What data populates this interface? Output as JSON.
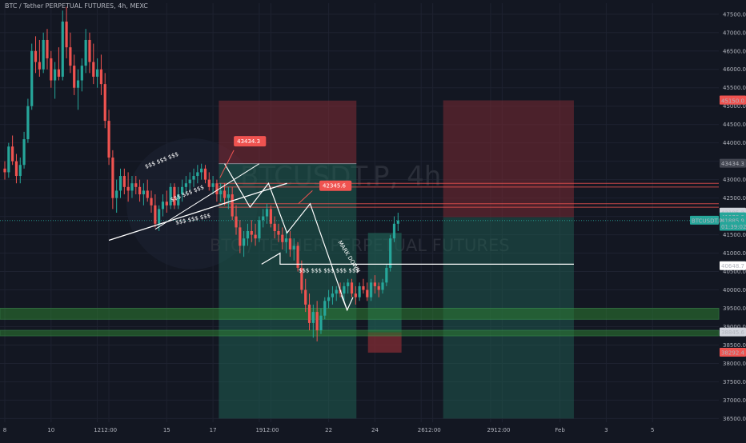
{
  "header": {
    "title": "BTC / Tether PERPETUAL FUTURES, 4h, MEXC"
  },
  "watermark": {
    "symbol": "BTCUSDT.P, 4h",
    "name": "BTC / TETHER PERPETUAL FUTURES"
  },
  "colors": {
    "bg": "#131722",
    "up": "#26a69a",
    "down": "#ef5350",
    "grid": "#1e2230",
    "zone_red": "#7a2a33",
    "zone_green": "#1f5e52",
    "band_green": "#2e7d32",
    "white": "#ffffff"
  },
  "chart_data": {
    "type": "candlestick",
    "title": "BTC / Tether PERPETUAL FUTURES, 4h, MEXC",
    "ylim": [
      36400,
      47800
    ],
    "y_ticks": [
      "47500.0",
      "47000.0",
      "46500.0",
      "46000.0",
      "45500.0",
      "45000.0",
      "44500.0",
      "44000.0",
      "43500.0",
      "43000.0",
      "42500.0",
      "42000.0",
      "41500.0",
      "41000.0",
      "40500.0",
      "40000.0",
      "39500.0",
      "39000.0",
      "38500.0",
      "38000.0",
      "37500.0",
      "37000.0",
      "36500.0"
    ],
    "x_ticks": [
      {
        "label": "8",
        "d": 0
      },
      {
        "label": "10",
        "d": 2
      },
      {
        "label": "12",
        "d": 4
      },
      {
        "label": "12:00",
        "d": 4.5
      },
      {
        "label": "15",
        "d": 7
      },
      {
        "label": "17",
        "d": 9
      },
      {
        "label": "19",
        "d": 11
      },
      {
        "label": "12:00",
        "d": 11.5
      },
      {
        "label": "22",
        "d": 14
      },
      {
        "label": "24",
        "d": 16
      },
      {
        "label": "26",
        "d": 18
      },
      {
        "label": "12:00",
        "d": 18.5
      },
      {
        "label": "29",
        "d": 21
      },
      {
        "label": "12:00",
        "d": 21.5
      },
      {
        "label": "Feb",
        "d": 24
      },
      {
        "label": "3",
        "d": 26
      },
      {
        "label": "5",
        "d": 28
      }
    ],
    "price_labels": [
      {
        "text": "45156.2",
        "price": 45156.2,
        "bg": "#ef5350"
      },
      {
        "text": "45150.0",
        "price": 45150.0,
        "bg": "#ef5350"
      },
      {
        "text": "43434.3",
        "price": 43434.3,
        "bg": "#434651"
      },
      {
        "text": "42105.2",
        "price": 42105.2,
        "bg": "#d1d4dc",
        "fg": "#131722"
      },
      {
        "text": "41978.3",
        "price": 41978.3,
        "bg": "#26a69a"
      },
      {
        "text": "41885.9",
        "price": 41885.9,
        "bg": "#26a69a"
      },
      {
        "text": "01:39:02",
        "price": 41720,
        "bg": "#26a69a"
      },
      {
        "text": "40648.7",
        "price": 40648.7,
        "bg": "#ffffff",
        "fg": "#131722"
      },
      {
        "text": "38845.6",
        "price": 38845.6,
        "bg": "#d1d4dc",
        "fg": "#131722"
      },
      {
        "text": "38292.4",
        "price": 38292.4,
        "bg": "#ef5350"
      }
    ],
    "symbol_tag": {
      "text": "BTCUSDT.P",
      "price": 41885.9
    },
    "annotations": [
      {
        "text": "43434.3",
        "day": 9.9,
        "price": 43990
      },
      {
        "text": "42345.6",
        "day": 13.6,
        "price": 42780
      },
      {
        "text": "$$$ $$$ $$$ $$$ $$$",
        "day": 12.7,
        "price": 40480
      },
      {
        "text": "$$$ $$$ $$$",
        "day": 7.4,
        "price": 41780
      },
      {
        "text": "$$$ $$$ $$$",
        "day": 7.2,
        "price": 42400
      },
      {
        "text": "$$$ $$$ $$$",
        "day": 6.1,
        "price": 43300
      },
      {
        "text": "MARK DOWN",
        "day": 14.4,
        "price": 41300
      }
    ],
    "last_price": 41885.9,
    "candles": [
      [
        0,
        43300,
        43500,
        43000,
        43200
      ],
      [
        0.167,
        43200,
        44000,
        43050,
        43900
      ],
      [
        0.333,
        43900,
        44200,
        43400,
        43500
      ],
      [
        0.5,
        43500,
        43700,
        42900,
        43100
      ],
      [
        0.667,
        43100,
        43600,
        42900,
        43400
      ],
      [
        0.833,
        43400,
        44300,
        43300,
        44100
      ],
      [
        1,
        44100,
        45200,
        44000,
        45000
      ],
      [
        1.167,
        45000,
        46700,
        44900,
        46500
      ],
      [
        1.333,
        46500,
        46900,
        45900,
        46200
      ],
      [
        1.5,
        46200,
        46800,
        45800,
        46000
      ],
      [
        1.667,
        46000,
        47000,
        45900,
        46800
      ],
      [
        1.833,
        46800,
        47100,
        46000,
        46300
      ],
      [
        2,
        46300,
        46500,
        45500,
        45700
      ],
      [
        2.167,
        45700,
        46200,
        45200,
        46000
      ],
      [
        2.333,
        46000,
        46600,
        45700,
        45800
      ],
      [
        2.5,
        45800,
        47600,
        45700,
        47300
      ],
      [
        2.667,
        47300,
        47700,
        46300,
        46600
      ],
      [
        2.833,
        46600,
        47000,
        45900,
        46100
      ],
      [
        3,
        46100,
        46400,
        45300,
        45500
      ],
      [
        3.167,
        45500,
        46000,
        44900,
        45700
      ],
      [
        3.333,
        45700,
        46300,
        45400,
        46100
      ],
      [
        3.5,
        46100,
        47100,
        45900,
        46800
      ],
      [
        3.667,
        46800,
        47000,
        45900,
        46200
      ],
      [
        3.833,
        46200,
        46700,
        45600,
        45800
      ],
      [
        4,
        45800,
        46300,
        45500,
        46000
      ],
      [
        4.167,
        46000,
        46400,
        45300,
        45600
      ],
      [
        4.333,
        45600,
        45900,
        44400,
        44600
      ],
      [
        4.5,
        44600,
        44900,
        43400,
        43600
      ],
      [
        4.667,
        43600,
        43800,
        42200,
        42500
      ],
      [
        4.833,
        42500,
        43000,
        42100,
        42700
      ],
      [
        5,
        42700,
        43300,
        42500,
        43100
      ],
      [
        5.167,
        43100,
        43300,
        42600,
        42800
      ],
      [
        5.333,
        42800,
        43200,
        42400,
        42700
      ],
      [
        5.5,
        42700,
        43100,
        42500,
        42900
      ],
      [
        5.667,
        42900,
        43100,
        42600,
        42800
      ],
      [
        5.833,
        42800,
        43000,
        42400,
        42600
      ],
      [
        6,
        42600,
        42900,
        42300,
        42700
      ],
      [
        6.167,
        42700,
        43000,
        42400,
        42500
      ],
      [
        6.333,
        42500,
        42700,
        42100,
        42300
      ],
      [
        6.5,
        42300,
        42600,
        41700,
        41800
      ],
      [
        6.667,
        41800,
        42300,
        41600,
        42200
      ],
      [
        6.833,
        42200,
        42600,
        42000,
        42400
      ],
      [
        7,
        42400,
        42700,
        42100,
        42300
      ],
      [
        7.167,
        42300,
        42900,
        42200,
        42800
      ],
      [
        7.333,
        42800,
        42900,
        42200,
        42300
      ],
      [
        7.5,
        42300,
        42800,
        42200,
        42600
      ],
      [
        7.667,
        42600,
        43000,
        42400,
        42800
      ],
      [
        7.833,
        42800,
        43100,
        42600,
        42900
      ],
      [
        8,
        42900,
        43200,
        42700,
        43000
      ],
      [
        8.167,
        43000,
        43300,
        42800,
        43100
      ],
      [
        8.333,
        43100,
        43400,
        42900,
        43200
      ],
      [
        8.5,
        43200,
        43434,
        43000,
        43300
      ],
      [
        8.667,
        43300,
        43400,
        42900,
        43000
      ],
      [
        8.833,
        43000,
        43200,
        42700,
        42800
      ],
      [
        9,
        42800,
        43100,
        42600,
        42900
      ],
      [
        9.167,
        42900,
        43000,
        42400,
        42600
      ],
      [
        9.333,
        42600,
        42900,
        42400,
        42700
      ],
      [
        9.5,
        42700,
        42900,
        42300,
        42500
      ],
      [
        9.667,
        42500,
        42800,
        42200,
        42600
      ],
      [
        9.833,
        42600,
        42800,
        41900,
        42000
      ],
      [
        10,
        42000,
        42300,
        41500,
        41700
      ],
      [
        10.167,
        41700,
        41900,
        41000,
        41200
      ],
      [
        10.333,
        41200,
        41600,
        40900,
        41400
      ],
      [
        10.5,
        41400,
        41800,
        41200,
        41600
      ],
      [
        10.667,
        41600,
        41900,
        41300,
        41500
      ],
      [
        10.833,
        41500,
        41800,
        41200,
        41400
      ],
      [
        11,
        41400,
        42000,
        41300,
        41900
      ],
      [
        11.167,
        41900,
        42200,
        41700,
        42000
      ],
      [
        11.333,
        42000,
        42345,
        41800,
        42200
      ],
      [
        11.5,
        42200,
        42300,
        41700,
        41800
      ],
      [
        11.667,
        41800,
        42000,
        41400,
        41600
      ],
      [
        11.833,
        41600,
        41800,
        41300,
        41500
      ],
      [
        12,
        41500,
        41700,
        41100,
        41300
      ],
      [
        12.167,
        41300,
        41600,
        41000,
        41400
      ],
      [
        12.333,
        41400,
        41600,
        40900,
        41100
      ],
      [
        12.5,
        41100,
        41400,
        40800,
        41200
      ],
      [
        12.667,
        41200,
        41300,
        40500,
        40600
      ],
      [
        12.833,
        40600,
        40800,
        39900,
        40000
      ],
      [
        13,
        40000,
        40300,
        39400,
        39600
      ],
      [
        13.167,
        39600,
        39900,
        38900,
        39100
      ],
      [
        13.333,
        39100,
        39600,
        38700,
        39400
      ],
      [
        13.5,
        39400,
        39700,
        38600,
        38900
      ],
      [
        13.667,
        38900,
        39500,
        38800,
        39300
      ],
      [
        13.833,
        39300,
        39800,
        39200,
        39700
      ],
      [
        14,
        39700,
        40000,
        39500,
        39800
      ],
      [
        14.167,
        39800,
        40100,
        39600,
        39900
      ],
      [
        14.333,
        39900,
        40100,
        39700,
        40000
      ],
      [
        14.5,
        40000,
        40200,
        39800,
        39900
      ],
      [
        14.667,
        39900,
        40200,
        39700,
        40100
      ],
      [
        14.833,
        40100,
        40300,
        39900,
        40200
      ],
      [
        15,
        40200,
        40300,
        39800,
        39900
      ],
      [
        15.167,
        39900,
        40100,
        39600,
        39800
      ],
      [
        15.333,
        39800,
        40200,
        39700,
        40100
      ],
      [
        15.5,
        40100,
        40300,
        39900,
        40000
      ],
      [
        15.667,
        40000,
        40200,
        39700,
        39800
      ],
      [
        15.833,
        39800,
        40300,
        39700,
        40200
      ],
      [
        16,
        40200,
        40400,
        39900,
        40100
      ],
      [
        16.167,
        40100,
        40200,
        39800,
        40000
      ],
      [
        16.333,
        40000,
        40300,
        39900,
        40200
      ],
      [
        16.5,
        40200,
        40700,
        40100,
        40600
      ],
      [
        16.667,
        40600,
        41500,
        40500,
        41400
      ],
      [
        16.833,
        41400,
        42000,
        41300,
        41800
      ],
      [
        17,
        41800,
        42100,
        41600,
        41886
      ]
    ]
  }
}
